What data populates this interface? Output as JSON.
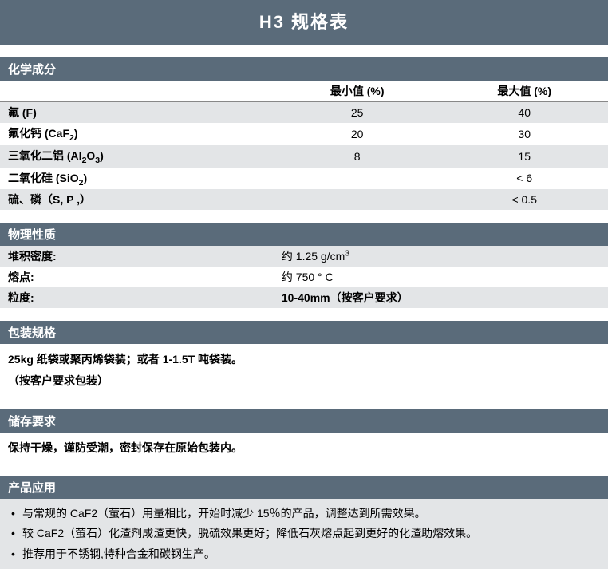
{
  "colors": {
    "header_bg": "#5a6b7a",
    "header_text": "#ffffff",
    "row_even": "#e3e5e7",
    "row_odd": "#ffffff",
    "text": "#000000"
  },
  "title": "H3 规格表",
  "sections": {
    "chemical": {
      "heading": "化学成分",
      "columns": [
        "",
        "最小值 (%)",
        "最大值 (%)"
      ],
      "rows": [
        {
          "label_html": "氟 (F)",
          "min": "25",
          "max": "40"
        },
        {
          "label_html": "氟化钙 (CaF<span class='sub'>2</span>)",
          "min": "20",
          "max": "30"
        },
        {
          "label_html": "三氧化二铝 (Al<span class='sub'>2</span>O<span class='sub'>3</span>)",
          "min": "8",
          "max": "15"
        },
        {
          "label_html": "二氧化硅 (SiO<span class='sub'>2</span>)",
          "min": "",
          "max": "< 6"
        },
        {
          "label_html": "硫、磷（S, P ,）",
          "min": "",
          "max": "< 0.5"
        }
      ]
    },
    "physical": {
      "heading": "物理性质",
      "rows": [
        {
          "label": "堆积密度:",
          "value_html": "约 1.25 g/cm<span class='sup'>3</span>",
          "bold_value": false
        },
        {
          "label": "熔点:",
          "value_html": "约 750 ° C",
          "bold_value": false
        },
        {
          "label": "粒度:",
          "value_html": "10-40mm（按客户要求）",
          "bold_value": true
        }
      ]
    },
    "packaging": {
      "heading": "包装规格",
      "lines": [
        "25kg 纸袋或聚丙烯袋装；或者 1-1.5T 吨袋装。",
        "（按客户要求包装）"
      ]
    },
    "storage": {
      "heading": "储存要求",
      "text": "保持干燥，谨防受潮，密封保存在原始包装内。"
    },
    "application": {
      "heading": "产品应用",
      "items": [
        "与常规的 CaF2（萤石）用量相比，开始时减少 15％的产品，调整达到所需效果。",
        "较 CaF2（萤石）化渣剂成渣更快，脱硫效果更好；降低石灰熔点起到更好的化渣助熔效果。",
        "推荐用于不锈钢,特种合金和碳钢生产。"
      ]
    }
  }
}
